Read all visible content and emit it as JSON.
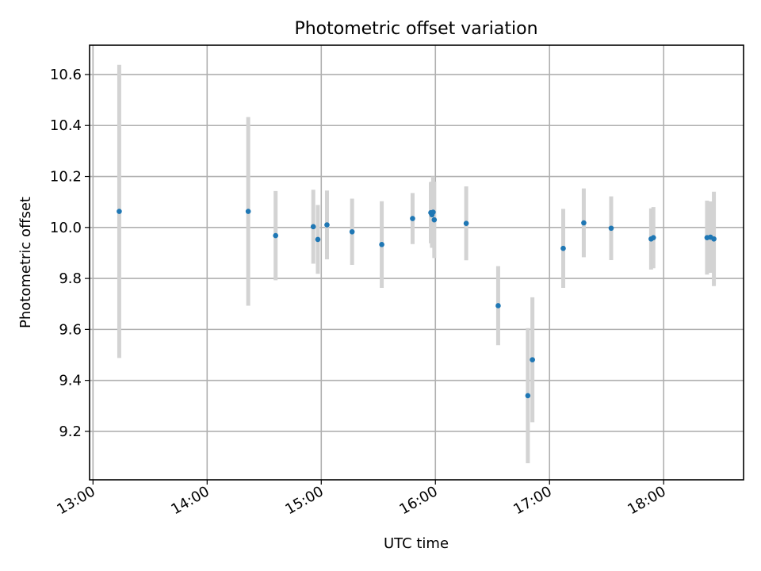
{
  "chart_data": {
    "type": "scatter",
    "title": "Photometric offset variation",
    "xlabel": "UTC time",
    "ylabel": "Photometric offset",
    "x_unit": "hours UTC",
    "xlim": [
      12.97,
      18.7
    ],
    "ylim": [
      9.01,
      10.715
    ],
    "x_ticks": [
      {
        "value": 13,
        "label": "13:00"
      },
      {
        "value": 14,
        "label": "14:00"
      },
      {
        "value": 15,
        "label": "15:00"
      },
      {
        "value": 16,
        "label": "16:00"
      },
      {
        "value": 17,
        "label": "17:00"
      },
      {
        "value": 18,
        "label": "18:00"
      }
    ],
    "y_ticks": [
      {
        "value": 9.2,
        "label": "9.2"
      },
      {
        "value": 9.4,
        "label": "9.4"
      },
      {
        "value": 9.6,
        "label": "9.6"
      },
      {
        "value": 9.8,
        "label": "9.8"
      },
      {
        "value": 10.0,
        "label": "10.0"
      },
      {
        "value": 10.2,
        "label": "10.2"
      },
      {
        "value": 10.4,
        "label": "10.4"
      },
      {
        "value": 10.6,
        "label": "10.6"
      }
    ],
    "grid": true,
    "point_color": "#1f77b4",
    "errorbar_color": "#d3d3d3",
    "points": [
      {
        "x": 13.23,
        "y": 10.063,
        "err": 0.575
      },
      {
        "x": 14.36,
        "y": 10.063,
        "err": 0.37
      },
      {
        "x": 14.6,
        "y": 9.968,
        "err": 0.175
      },
      {
        "x": 14.93,
        "y": 10.003,
        "err": 0.145
      },
      {
        "x": 14.97,
        "y": 9.953,
        "err": 0.135
      },
      {
        "x": 15.05,
        "y": 10.01,
        "err": 0.135
      },
      {
        "x": 15.27,
        "y": 9.983,
        "err": 0.13
      },
      {
        "x": 15.53,
        "y": 9.933,
        "err": 0.17
      },
      {
        "x": 15.8,
        "y": 10.035,
        "err": 0.1
      },
      {
        "x": 15.96,
        "y": 10.058,
        "err": 0.12
      },
      {
        "x": 15.97,
        "y": 10.05,
        "err": 0.13
      },
      {
        "x": 15.98,
        "y": 10.06,
        "err": 0.14
      },
      {
        "x": 15.99,
        "y": 10.03,
        "err": 0.15
      },
      {
        "x": 16.27,
        "y": 10.016,
        "err": 0.145
      },
      {
        "x": 16.55,
        "y": 9.693,
        "err": 0.155
      },
      {
        "x": 16.81,
        "y": 9.34,
        "err": 0.265
      },
      {
        "x": 16.85,
        "y": 9.481,
        "err": 0.245
      },
      {
        "x": 17.12,
        "y": 9.918,
        "err": 0.155
      },
      {
        "x": 17.3,
        "y": 10.018,
        "err": 0.135
      },
      {
        "x": 17.54,
        "y": 9.997,
        "err": 0.125
      },
      {
        "x": 17.89,
        "y": 9.955,
        "err": 0.12
      },
      {
        "x": 17.91,
        "y": 9.96,
        "err": 0.12
      },
      {
        "x": 18.38,
        "y": 9.96,
        "err": 0.145
      },
      {
        "x": 18.41,
        "y": 9.962,
        "err": 0.14
      },
      {
        "x": 18.44,
        "y": 9.955,
        "err": 0.185
      }
    ]
  }
}
